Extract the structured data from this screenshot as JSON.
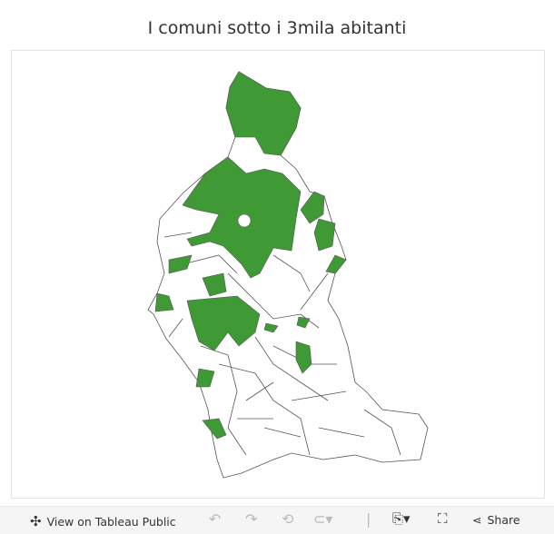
{
  "title": "I comuni sotto i 3mila abitanti",
  "map": {
    "highlight_color": "#3f9a36",
    "border_color": "#555555"
  },
  "toolbar": {
    "view_label": "View on Tableau Public",
    "share_label": "Share"
  }
}
